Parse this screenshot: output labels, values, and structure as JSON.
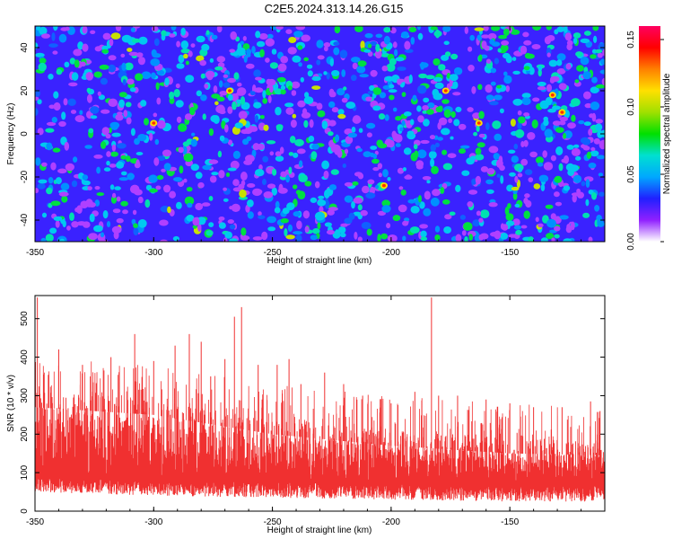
{
  "title": "C2E5.2024.313.14.26.G15",
  "chart_data": [
    {
      "type": "heatmap",
      "xlabel": "Height of straight line (km)",
      "ylabel": "Frequency (Hz)",
      "xlim": [
        -350,
        -110
      ],
      "ylim": [
        -50,
        50
      ],
      "xticks": [
        -350,
        -300,
        -250,
        -200,
        -150
      ],
      "yticks": [
        -40,
        -20,
        0,
        20,
        40
      ],
      "colorbar": {
        "label": "Normalized spectral amplitude",
        "range": [
          0,
          0.16
        ],
        "ticks": [
          "0.00",
          "0.05",
          "0.10",
          "0.15"
        ],
        "colormap": [
          "#ffffff",
          "#9020ff",
          "#2020ff",
          "#00a8ff",
          "#00e0d0",
          "#00e000",
          "#a0e000",
          "#ffe000",
          "#ff8000",
          "#ff0000",
          "#ff0060"
        ]
      },
      "grid": false
    },
    {
      "type": "line",
      "xlabel": "Height of straight line (km)",
      "ylabel": "SNR (10 * v/v)",
      "xlim": [
        -350,
        -110
      ],
      "ylim": [
        0,
        560
      ],
      "xticks": [
        -350,
        -300,
        -250,
        -200,
        -150
      ],
      "yticks": [
        0,
        100,
        200,
        300,
        400,
        500
      ],
      "series": [
        {
          "color": "#f03030",
          "x_range": [
            -350,
            -110
          ],
          "baseline_lower": [
            [
              -350,
              70
            ],
            [
              -300,
              60
            ],
            [
              -250,
              55
            ],
            [
              -200,
              50
            ],
            [
              -150,
              45
            ],
            [
              -110,
              45
            ]
          ],
          "band_upper": [
            [
              -350,
              310
            ],
            [
              -300,
              290
            ],
            [
              -250,
              240
            ],
            [
              -200,
              210
            ],
            [
              -150,
              190
            ],
            [
              -110,
              185
            ]
          ],
          "peaks": [
            [
              -349,
              555
            ],
            [
              -340,
              420
            ],
            [
              -330,
              380
            ],
            [
              -318,
              400
            ],
            [
              -308,
              460
            ],
            [
              -300,
              390
            ],
            [
              -291,
              430
            ],
            [
              -285,
              460
            ],
            [
              -280,
              440
            ],
            [
              -276,
              350
            ],
            [
              -270,
              395
            ],
            [
              -266,
              505
            ],
            [
              -263,
              530
            ],
            [
              -256,
              380
            ],
            [
              -248,
              380
            ],
            [
              -243,
              395
            ],
            [
              -238,
              330
            ],
            [
              -228,
              360
            ],
            [
              -220,
              330
            ],
            [
              -212,
              300
            ],
            [
              -200,
              280
            ],
            [
              -190,
              310
            ],
            [
              -183,
              555
            ],
            [
              -180,
              300
            ],
            [
              -172,
              300
            ],
            [
              -160,
              290
            ],
            [
              -150,
              280
            ],
            [
              -140,
              270
            ],
            [
              -128,
              270
            ],
            [
              -116,
              285
            ],
            [
              -112,
              260
            ]
          ]
        }
      ],
      "grid": false
    }
  ]
}
